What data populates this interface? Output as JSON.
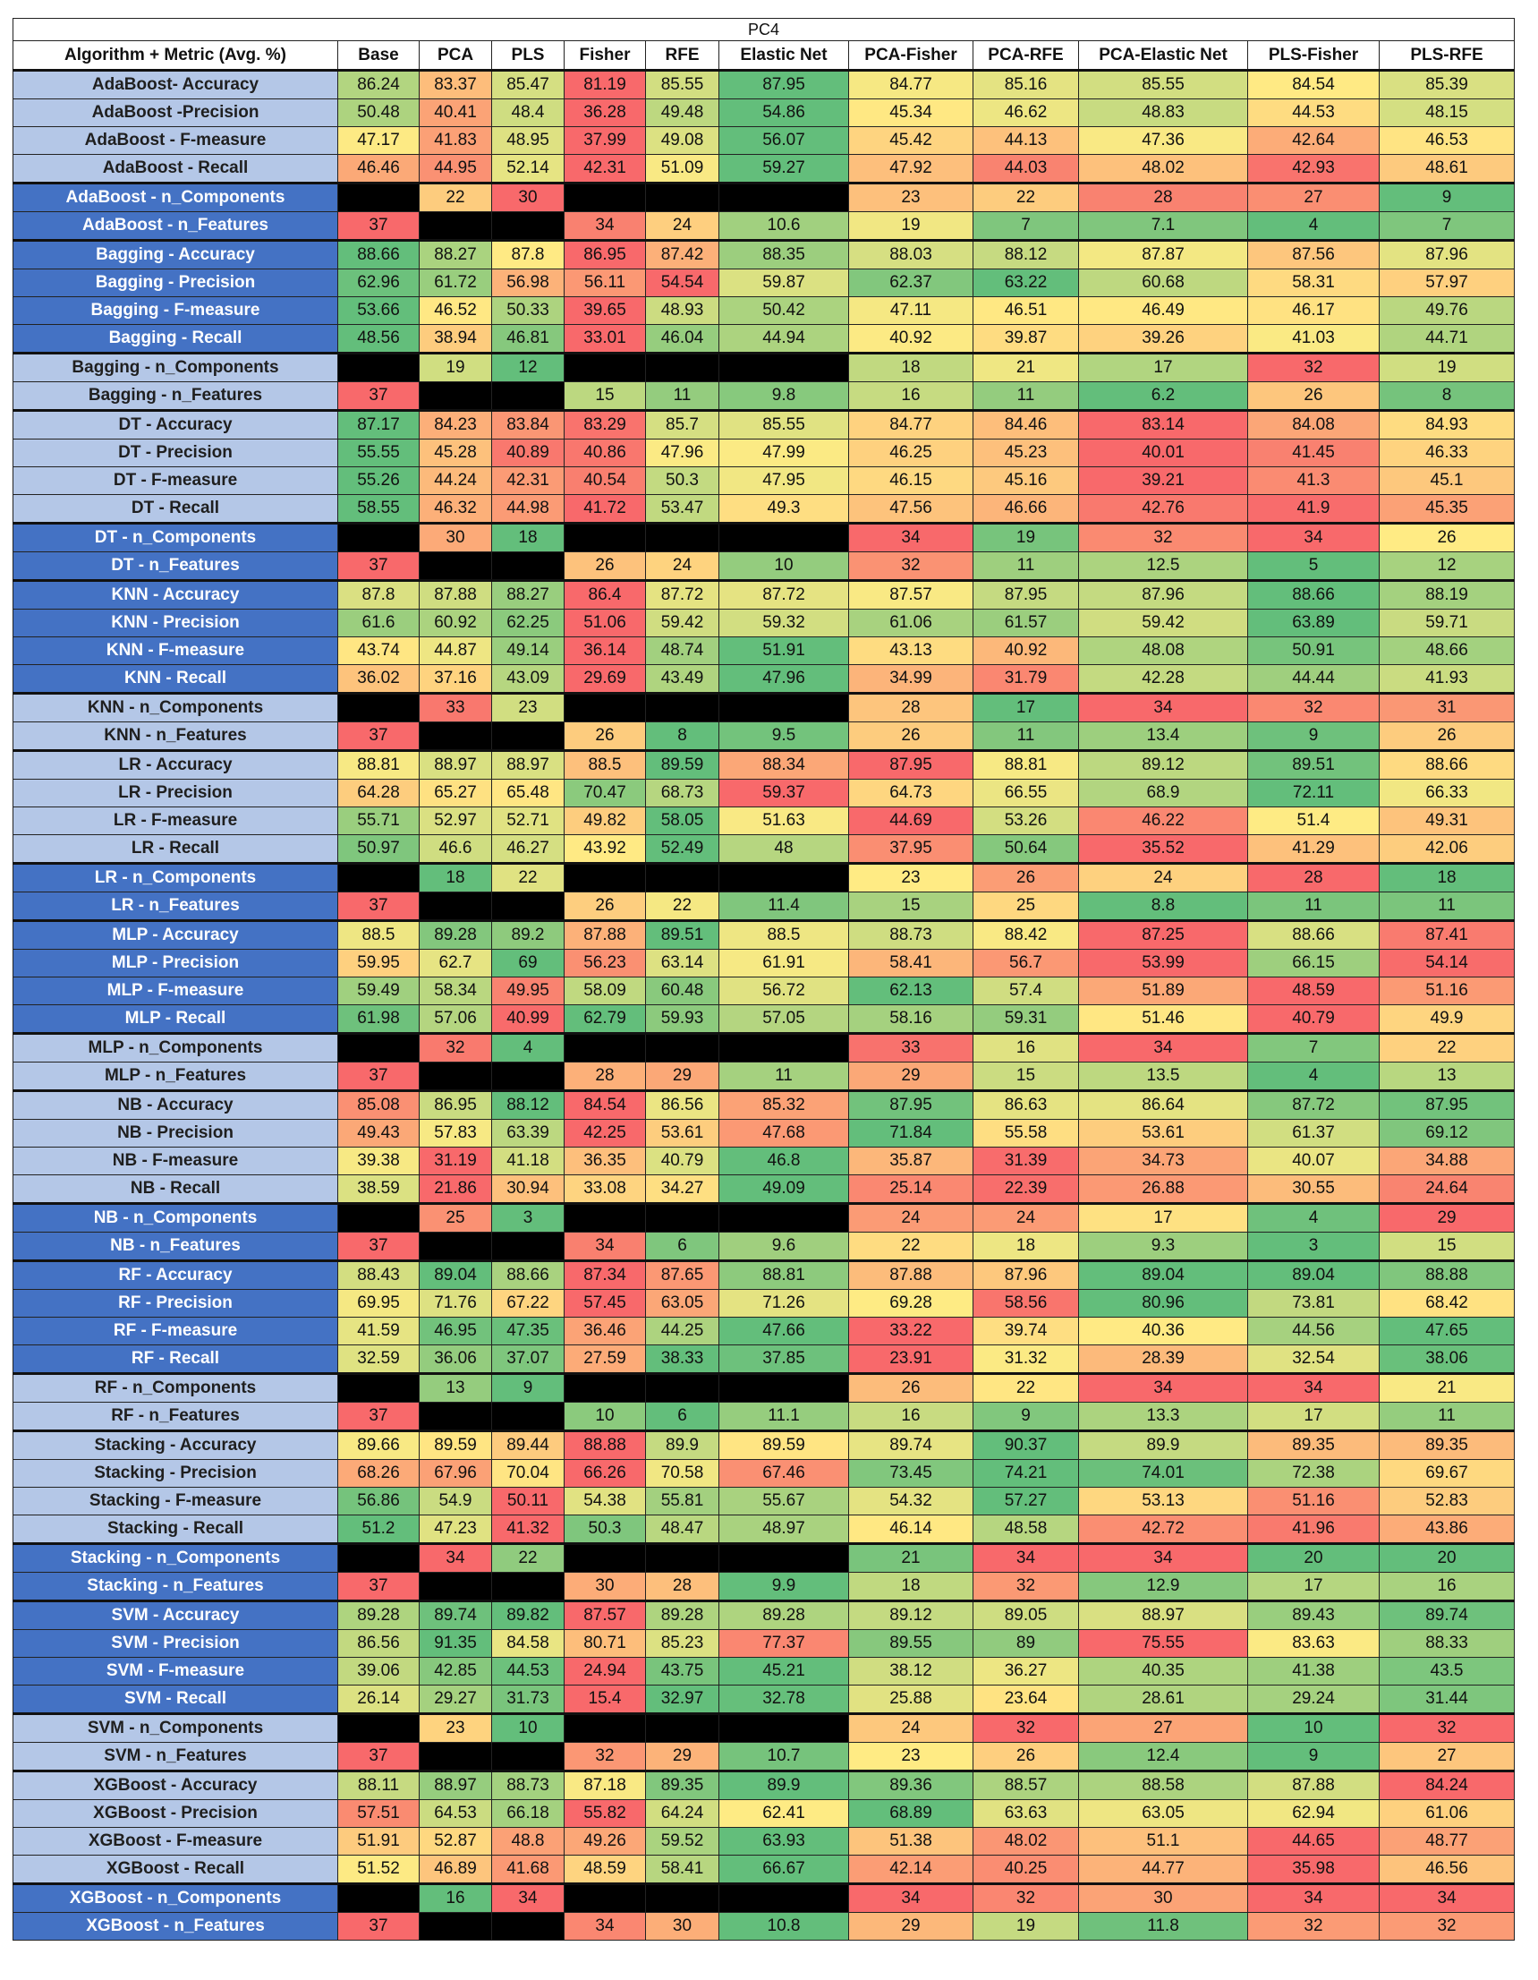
{
  "chart_data": {
    "type": "table",
    "title": "PC4",
    "columns": [
      "Algorithm + Metric (Avg. %)",
      "Base",
      "PCA",
      "PLS",
      "Fisher",
      "RFE",
      "Elastic Net",
      "PCA-Fisher",
      "PCA-RFE",
      "PCA-Elastic Net",
      "PLS-Fisher",
      "PLS-RFE"
    ],
    "groups": [
      {
        "metric_rows": [
          [
            "AdaBoost- Accuracy",
            "86.24",
            "83.37",
            "85.47",
            "81.19",
            "85.55",
            "87.95",
            "84.77",
            "85.16",
            "85.55",
            "84.54",
            "85.39"
          ],
          [
            "AdaBoost -Precision",
            "50.48",
            "40.41",
            "48.4",
            "36.28",
            "49.48",
            "54.86",
            "45.34",
            "46.62",
            "48.83",
            "44.53",
            "48.15"
          ],
          [
            "AdaBoost - F-measure",
            "47.17",
            "41.83",
            "48.95",
            "37.99",
            "49.08",
            "56.07",
            "45.42",
            "44.13",
            "47.36",
            "42.64",
            "46.53"
          ],
          [
            "AdaBoost - Recall",
            "46.46",
            "44.95",
            "52.14",
            "42.31",
            "51.09",
            "59.27",
            "47.92",
            "44.03",
            "48.02",
            "42.93",
            "48.61"
          ]
        ],
        "param_rows": [
          [
            "AdaBoost - n_Components",
            "",
            "22",
            "30",
            "",
            "",
            "",
            "23",
            "22",
            "28",
            "27",
            "9"
          ],
          [
            "AdaBoost - n_Features",
            "37",
            "",
            "",
            "34",
            "24",
            "10.6",
            "19",
            "7",
            "7.1",
            "4",
            "7"
          ]
        ]
      },
      {
        "metric_rows": [
          [
            "Bagging - Accuracy",
            "88.66",
            "88.27",
            "87.8",
            "86.95",
            "87.42",
            "88.35",
            "88.03",
            "88.12",
            "87.87",
            "87.56",
            "87.96"
          ],
          [
            "Bagging - Precision",
            "62.96",
            "61.72",
            "56.98",
            "56.11",
            "54.54",
            "59.87",
            "62.37",
            "63.22",
            "60.68",
            "58.31",
            "57.97"
          ],
          [
            "Bagging - F-measure",
            "53.66",
            "46.52",
            "50.33",
            "39.65",
            "48.93",
            "50.42",
            "47.11",
            "46.51",
            "46.49",
            "46.17",
            "49.76"
          ],
          [
            "Bagging - Recall",
            "48.56",
            "38.94",
            "46.81",
            "33.01",
            "46.04",
            "44.94",
            "40.92",
            "39.87",
            "39.26",
            "41.03",
            "44.71"
          ]
        ],
        "param_rows": [
          [
            "Bagging - n_Components",
            "",
            "19",
            "12",
            "",
            "",
            "",
            "18",
            "21",
            "17",
            "32",
            "19"
          ],
          [
            "Bagging - n_Features",
            "37",
            "",
            "",
            "15",
            "11",
            "9.8",
            "16",
            "11",
            "6.2",
            "26",
            "8"
          ]
        ]
      },
      {
        "metric_rows": [
          [
            "DT - Accuracy",
            "87.17",
            "84.23",
            "83.84",
            "83.29",
            "85.7",
            "85.55",
            "84.77",
            "84.46",
            "83.14",
            "84.08",
            "84.93"
          ],
          [
            "DT - Precision",
            "55.55",
            "45.28",
            "40.89",
            "40.86",
            "47.96",
            "47.99",
            "46.25",
            "45.23",
            "40.01",
            "41.45",
            "46.33"
          ],
          [
            "DT - F-measure",
            "55.26",
            "44.24",
            "42.31",
            "40.54",
            "50.3",
            "47.95",
            "46.15",
            "45.16",
            "39.21",
            "41.3",
            "45.1"
          ],
          [
            "DT - Recall",
            "58.55",
            "46.32",
            "44.98",
            "41.72",
            "53.47",
            "49.3",
            "47.56",
            "46.66",
            "42.76",
            "41.9",
            "45.35"
          ]
        ],
        "param_rows": [
          [
            "DT - n_Components",
            "",
            "30",
            "18",
            "",
            "",
            "",
            "34",
            "19",
            "32",
            "34",
            "26"
          ],
          [
            "DT - n_Features",
            "37",
            "",
            "",
            "26",
            "24",
            "10",
            "32",
            "11",
            "12.5",
            "5",
            "12"
          ]
        ]
      },
      {
        "metric_rows": [
          [
            "KNN - Accuracy",
            "87.8",
            "87.88",
            "88.27",
            "86.4",
            "87.72",
            "87.72",
            "87.57",
            "87.95",
            "87.96",
            "88.66",
            "88.19"
          ],
          [
            "KNN - Precision",
            "61.6",
            "60.92",
            "62.25",
            "51.06",
            "59.42",
            "59.32",
            "61.06",
            "61.57",
            "59.42",
            "63.89",
            "59.71"
          ],
          [
            "KNN - F-measure",
            "43.74",
            "44.87",
            "49.14",
            "36.14",
            "48.74",
            "51.91",
            "43.13",
            "40.92",
            "48.08",
            "50.91",
            "48.66"
          ],
          [
            "KNN - Recall",
            "36.02",
            "37.16",
            "43.09",
            "29.69",
            "43.49",
            "47.96",
            "34.99",
            "31.79",
            "42.28",
            "44.44",
            "41.93"
          ]
        ],
        "param_rows": [
          [
            "KNN - n_Components",
            "",
            "33",
            "23",
            "",
            "",
            "",
            "28",
            "17",
            "34",
            "32",
            "31"
          ],
          [
            "KNN - n_Features",
            "37",
            "",
            "",
            "26",
            "8",
            "9.5",
            "26",
            "11",
            "13.4",
            "9",
            "26"
          ]
        ]
      },
      {
        "metric_rows": [
          [
            "LR - Accuracy",
            "88.81",
            "88.97",
            "88.97",
            "88.5",
            "89.59",
            "88.34",
            "87.95",
            "88.81",
            "89.12",
            "89.51",
            "88.66"
          ],
          [
            "LR - Precision",
            "64.28",
            "65.27",
            "65.48",
            "70.47",
            "68.73",
            "59.37",
            "64.73",
            "66.55",
            "68.9",
            "72.11",
            "66.33"
          ],
          [
            "LR - F-measure",
            "55.71",
            "52.97",
            "52.71",
            "49.82",
            "58.05",
            "51.63",
            "44.69",
            "53.26",
            "46.22",
            "51.4",
            "49.31"
          ],
          [
            "LR - Recall",
            "50.97",
            "46.6",
            "46.27",
            "43.92",
            "52.49",
            "48",
            "37.95",
            "50.64",
            "35.52",
            "41.29",
            "42.06"
          ]
        ],
        "param_rows": [
          [
            "LR - n_Components",
            "",
            "18",
            "22",
            "",
            "",
            "",
            "23",
            "26",
            "24",
            "28",
            "18"
          ],
          [
            "LR - n_Features",
            "37",
            "",
            "",
            "26",
            "22",
            "11.4",
            "15",
            "25",
            "8.8",
            "11",
            "11"
          ]
        ]
      },
      {
        "metric_rows": [
          [
            "MLP - Accuracy",
            "88.5",
            "89.28",
            "89.2",
            "87.88",
            "89.51",
            "88.5",
            "88.73",
            "88.42",
            "87.25",
            "88.66",
            "87.41"
          ],
          [
            "MLP -  Precision",
            "59.95",
            "62.7",
            "69",
            "56.23",
            "63.14",
            "61.91",
            "58.41",
            "56.7",
            "53.99",
            "66.15",
            "54.14"
          ],
          [
            "MLP -  F-measure",
            "59.49",
            "58.34",
            "49.95",
            "58.09",
            "60.48",
            "56.72",
            "62.13",
            "57.4",
            "51.89",
            "48.59",
            "51.16"
          ],
          [
            "MLP -  Recall",
            "61.98",
            "57.06",
            "40.99",
            "62.79",
            "59.93",
            "57.05",
            "58.16",
            "59.31",
            "51.46",
            "40.79",
            "49.9"
          ]
        ],
        "param_rows": [
          [
            "MLP - n_Components",
            "",
            "32",
            "4",
            "",
            "",
            "",
            "33",
            "16",
            "34",
            "7",
            "22"
          ],
          [
            "MLP - n_Features",
            "37",
            "",
            "",
            "28",
            "29",
            "11",
            "29",
            "15",
            "13.5",
            "4",
            "13"
          ]
        ]
      },
      {
        "metric_rows": [
          [
            "NB - Accuracy",
            "85.08",
            "86.95",
            "88.12",
            "84.54",
            "86.56",
            "85.32",
            "87.95",
            "86.63",
            "86.64",
            "87.72",
            "87.95"
          ],
          [
            "NB - Precision",
            "49.43",
            "57.83",
            "63.39",
            "42.25",
            "53.61",
            "47.68",
            "71.84",
            "55.58",
            "53.61",
            "61.37",
            "69.12"
          ],
          [
            "NB - F-measure",
            "39.38",
            "31.19",
            "41.18",
            "36.35",
            "40.79",
            "46.8",
            "35.87",
            "31.39",
            "34.73",
            "40.07",
            "34.88"
          ],
          [
            "NB - Recall",
            "38.59",
            "21.86",
            "30.94",
            "33.08",
            "34.27",
            "49.09",
            "25.14",
            "22.39",
            "26.88",
            "30.55",
            "24.64"
          ]
        ],
        "param_rows": [
          [
            "NB - n_Components",
            "",
            "25",
            "3",
            "",
            "",
            "",
            "24",
            "24",
            "17",
            "4",
            "29"
          ],
          [
            "NB - n_Features",
            "37",
            "",
            "",
            "34",
            "6",
            "9.6",
            "22",
            "18",
            "9.3",
            "3",
            "15"
          ]
        ]
      },
      {
        "metric_rows": [
          [
            "RF - Accuracy",
            "88.43",
            "89.04",
            "88.66",
            "87.34",
            "87.65",
            "88.81",
            "87.88",
            "87.96",
            "89.04",
            "89.04",
            "88.88"
          ],
          [
            "RF - Precision",
            "69.95",
            "71.76",
            "67.22",
            "57.45",
            "63.05",
            "71.26",
            "69.28",
            "58.56",
            "80.96",
            "73.81",
            "68.42"
          ],
          [
            "RF - F-measure",
            "41.59",
            "46.95",
            "47.35",
            "36.46",
            "44.25",
            "47.66",
            "33.22",
            "39.74",
            "40.36",
            "44.56",
            "47.65"
          ],
          [
            "RF - Recall",
            "32.59",
            "36.06",
            "37.07",
            "27.59",
            "38.33",
            "37.85",
            "23.91",
            "31.32",
            "28.39",
            "32.54",
            "38.06"
          ]
        ],
        "param_rows": [
          [
            "RF - n_Components",
            "",
            "13",
            "9",
            "",
            "",
            "",
            "26",
            "22",
            "34",
            "34",
            "21"
          ],
          [
            "RF - n_Features",
            "37",
            "",
            "",
            "10",
            "6",
            "11.1",
            "16",
            "9",
            "13.3",
            "17",
            "11"
          ]
        ]
      },
      {
        "metric_rows": [
          [
            "Stacking - Accuracy",
            "89.66",
            "89.59",
            "89.44",
            "88.88",
            "89.9",
            "89.59",
            "89.74",
            "90.37",
            "89.9",
            "89.35",
            "89.35"
          ],
          [
            "Stacking - Precision",
            "68.26",
            "67.96",
            "70.04",
            "66.26",
            "70.58",
            "67.46",
            "73.45",
            "74.21",
            "74.01",
            "72.38",
            "69.67"
          ],
          [
            "Stacking - F-measure",
            "56.86",
            "54.9",
            "50.11",
            "54.38",
            "55.81",
            "55.67",
            "54.32",
            "57.27",
            "53.13",
            "51.16",
            "52.83"
          ],
          [
            "Stacking - Recall",
            "51.2",
            "47.23",
            "41.32",
            "50.3",
            "48.47",
            "48.97",
            "46.14",
            "48.58",
            "42.72",
            "41.96",
            "43.86"
          ]
        ],
        "param_rows": [
          [
            "Stacking - n_Components",
            "",
            "34",
            "22",
            "",
            "",
            "",
            "21",
            "34",
            "34",
            "20",
            "20"
          ],
          [
            "Stacking - n_Features",
            "37",
            "",
            "",
            "30",
            "28",
            "9.9",
            "18",
            "32",
            "12.9",
            "17",
            "16"
          ]
        ]
      },
      {
        "metric_rows": [
          [
            "SVM - Accuracy",
            "89.28",
            "89.74",
            "89.82",
            "87.57",
            "89.28",
            "89.28",
            "89.12",
            "89.05",
            "88.97",
            "89.43",
            "89.74"
          ],
          [
            "SVM - Precision",
            "86.56",
            "91.35",
            "84.58",
            "80.71",
            "85.23",
            "77.37",
            "89.55",
            "89",
            "75.55",
            "83.63",
            "88.33"
          ],
          [
            "SVM - F-measure",
            "39.06",
            "42.85",
            "44.53",
            "24.94",
            "43.75",
            "45.21",
            "38.12",
            "36.27",
            "40.35",
            "41.38",
            "43.5"
          ],
          [
            "SVM - Recall",
            "26.14",
            "29.27",
            "31.73",
            "15.4",
            "32.97",
            "32.78",
            "25.88",
            "23.64",
            "28.61",
            "29.24",
            "31.44"
          ]
        ],
        "param_rows": [
          [
            "SVM - n_Components",
            "",
            "23",
            "10",
            "",
            "",
            "",
            "24",
            "32",
            "27",
            "10",
            "32"
          ],
          [
            "SVM - n_Features",
            "37",
            "",
            "",
            "32",
            "29",
            "10.7",
            "23",
            "26",
            "12.4",
            "9",
            "27"
          ]
        ]
      },
      {
        "metric_rows": [
          [
            "XGBoost - Accuracy",
            "88.11",
            "88.97",
            "88.73",
            "87.18",
            "89.35",
            "89.9",
            "89.36",
            "88.57",
            "88.58",
            "87.88",
            "84.24"
          ],
          [
            "XGBoost - Precision",
            "57.51",
            "64.53",
            "66.18",
            "55.82",
            "64.24",
            "62.41",
            "68.89",
            "63.63",
            "63.05",
            "62.94",
            "61.06"
          ],
          [
            "XGBoost - F-measure",
            "51.91",
            "52.87",
            "48.8",
            "49.26",
            "59.52",
            "63.93",
            "51.38",
            "48.02",
            "51.1",
            "44.65",
            "48.77"
          ],
          [
            "XGBoost - Recall",
            "51.52",
            "46.89",
            "41.68",
            "48.59",
            "58.41",
            "66.67",
            "42.14",
            "40.25",
            "44.77",
            "35.98",
            "46.56"
          ]
        ],
        "param_rows": [
          [
            "XGBoost - n_Components",
            "",
            "16",
            "34",
            "",
            "",
            "",
            "34",
            "32",
            "30",
            "34",
            "34"
          ],
          [
            "XGBoost - n_Features",
            "37",
            "",
            "",
            "34",
            "30",
            "10.8",
            "29",
            "19",
            "11.8",
            "32",
            "32"
          ]
        ]
      }
    ],
    "colors": {
      "red": "#f8696b",
      "yellow": "#ffeb84",
      "green": "#63be7b",
      "label_light": "#b4c7e7",
      "label_dark": "#4472c4",
      "empty": "#000000"
    }
  }
}
